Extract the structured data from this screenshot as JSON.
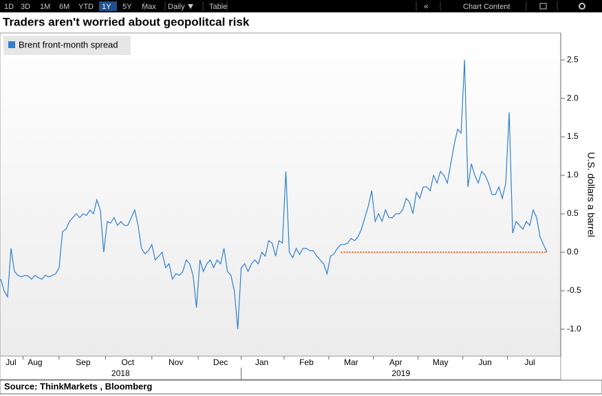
{
  "toolbar": {
    "ranges": [
      "1D",
      "3D",
      "1M",
      "6M",
      "YTD",
      "1Y",
      "5Y",
      "Max"
    ],
    "active_range": 5,
    "frequency": "Daily",
    "table": "Table",
    "chart_content": "Chart Content"
  },
  "chart_data": {
    "type": "line",
    "title": "Traders aren't worried about geopolitcal risk",
    "y_label": "U.S. dollars a barrel",
    "source": "Source: ThinkMarkets , Bloomberg",
    "year_labels": [
      "2018",
      "2019"
    ],
    "legend": "top-left",
    "reference_line": {
      "value": 0,
      "color": "#e8571e"
    },
    "categories": [
      null,
      null,
      null,
      "Jul",
      null,
      null,
      null,
      null,
      null,
      null,
      "Aug",
      null,
      null,
      null,
      null,
      null,
      null,
      null,
      null,
      null,
      null,
      null,
      null,
      null,
      "Sep",
      null,
      null,
      null,
      null,
      null,
      null,
      null,
      null,
      null,
      null,
      null,
      null,
      "Oct",
      null,
      null,
      null,
      null,
      null,
      null,
      null,
      null,
      null,
      null,
      null,
      null,
      null,
      "Nov",
      null,
      null,
      null,
      null,
      null,
      null,
      null,
      null,
      null,
      null,
      null,
      null,
      "Dec",
      null,
      null,
      null,
      null,
      null,
      null,
      null,
      null,
      null,
      null,
      null,
      "Jan",
      null,
      null,
      null,
      null,
      null,
      null,
      null,
      null,
      null,
      null,
      null,
      null,
      "Feb",
      null,
      null,
      null,
      null,
      null,
      null,
      null,
      null,
      null,
      null,
      null,
      null,
      "Mar",
      null,
      null,
      null,
      null,
      null,
      null,
      null,
      null,
      null,
      null,
      null,
      null,
      "Apr",
      null,
      null,
      null,
      null,
      null,
      null,
      null,
      null,
      null,
      null,
      null,
      null,
      "May",
      null,
      null,
      null,
      null,
      null,
      null,
      null,
      null,
      null,
      null,
      null,
      null,
      "Jun",
      null,
      null,
      null,
      null,
      null,
      null,
      null,
      null,
      null,
      null,
      null,
      null,
      "Jul",
      null,
      null,
      null,
      null,
      null
    ],
    "series": [
      {
        "name": "Brent front-month spread",
        "color": "#2e7fd0",
        "values": [
          -0.35,
          -0.5,
          -0.58,
          0.05,
          -0.25,
          -0.3,
          -0.32,
          -0.3,
          -0.31,
          -0.35,
          -0.3,
          -0.33,
          -0.35,
          -0.3,
          -0.32,
          -0.3,
          -0.28,
          -0.2,
          0.27,
          0.3,
          0.4,
          0.45,
          0.5,
          0.45,
          0.5,
          0.48,
          0.55,
          0.5,
          0.68,
          0.55,
          0.0,
          0.4,
          0.38,
          0.45,
          0.35,
          0.4,
          0.35,
          0.35,
          0.45,
          0.55,
          0.35,
          0.05,
          -0.02,
          0.02,
          0.1,
          -0.1,
          -0.05,
          0.0,
          -0.2,
          -0.15,
          -0.35,
          -0.28,
          -0.3,
          -0.25,
          -0.1,
          -0.15,
          -0.3,
          -0.72,
          -0.1,
          -0.25,
          -0.15,
          -0.1,
          -0.2,
          -0.1,
          -0.15,
          0.05,
          -0.25,
          -0.3,
          -0.5,
          -1.0,
          -0.2,
          -0.15,
          -0.25,
          -0.15,
          -0.1,
          -0.15,
          0.0,
          -0.05,
          0.15,
          0.12,
          -0.05,
          0.15,
          0.12,
          1.05,
          0.0,
          -0.07,
          0.05,
          -0.03,
          0.05,
          0.05,
          0.02,
          0.02,
          -0.05,
          -0.1,
          -0.15,
          -0.28,
          -0.05,
          -0.02,
          0.05,
          0.1,
          0.1,
          0.12,
          0.18,
          0.15,
          0.2,
          0.3,
          0.45,
          0.6,
          0.8,
          0.4,
          0.5,
          0.4,
          0.55,
          0.45,
          0.45,
          0.5,
          0.5,
          0.55,
          0.7,
          0.65,
          0.5,
          0.78,
          0.7,
          0.85,
          0.85,
          0.8,
          1.0,
          0.9,
          1.05,
          1.0,
          0.9,
          1.15,
          1.4,
          1.6,
          1.55,
          2.5,
          0.85,
          1.15,
          1.0,
          0.9,
          1.05,
          1.0,
          0.9,
          0.75,
          0.75,
          0.85,
          0.7,
          0.9,
          1.82,
          0.25,
          0.4,
          0.35,
          0.3,
          0.4,
          0.35,
          0.55,
          0.45,
          0.2,
          0.1,
          0.0
        ]
      }
    ],
    "ylim": [
      -1.35,
      2.85
    ],
    "yticks": [
      {
        "value": -1,
        "label": "-1.0"
      },
      -0.5,
      {
        "value": 0,
        "label": "0.0"
      },
      0.5,
      {
        "value": 1,
        "label": "1.0"
      },
      1.5,
      {
        "value": 2,
        "label": "2.0"
      },
      2.5
    ],
    "grid": false
  }
}
